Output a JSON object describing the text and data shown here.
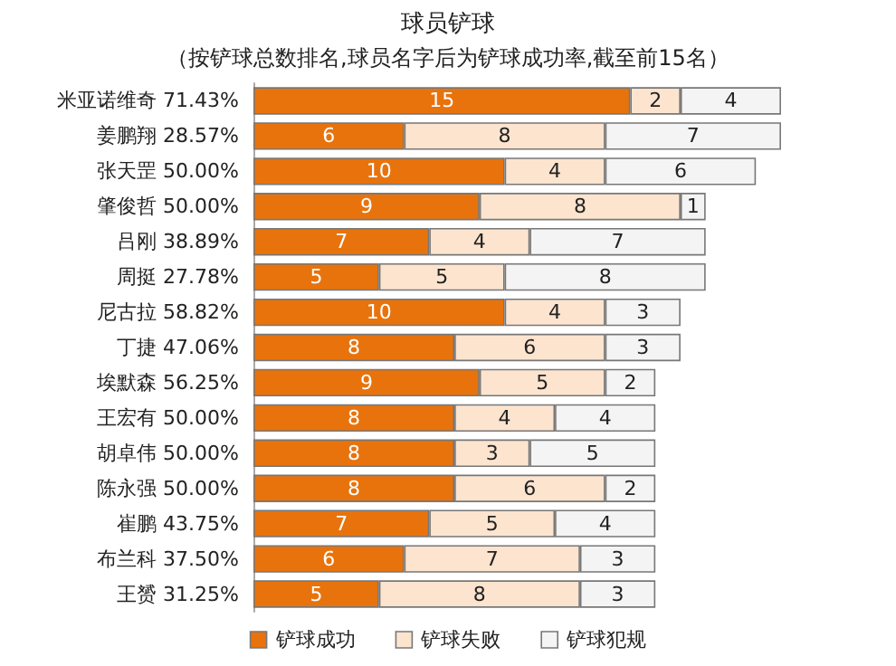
{
  "chart_data": {
    "type": "bar",
    "orientation": "horizontal",
    "stacked": true,
    "data_labels": true,
    "legend": "bottom",
    "title": "球员铲球",
    "subtitle": "（按铲球总数排名,球员名字后为铲球成功率,截至前15名）",
    "categories": [
      "米亚诺维奇 71.43%",
      "姜鹏翔 28.57%",
      "张天罡 50.00%",
      "肇俊哲 50.00%",
      "吕刚 38.89%",
      "周挺 27.78%",
      "尼古拉 58.82%",
      "丁捷 47.06%",
      "埃默森 56.25%",
      "王宏有 50.00%",
      "胡卓伟 50.00%",
      "陈永强 50.00%",
      "崔鹏 43.75%",
      "布兰科 37.50%",
      "王赟 31.25%"
    ],
    "series": [
      {
        "name": "铲球成功",
        "color": "#e8730c",
        "values": [
          15,
          6,
          10,
          9,
          7,
          5,
          10,
          8,
          9,
          8,
          8,
          8,
          7,
          6,
          5
        ]
      },
      {
        "name": "铲球失败",
        "color": "#fce4cf",
        "values": [
          2,
          8,
          4,
          8,
          4,
          5,
          4,
          6,
          5,
          4,
          3,
          6,
          5,
          7,
          8
        ]
      },
      {
        "name": "铲球犯规",
        "color": "#f4f4f4",
        "values": [
          4,
          7,
          6,
          1,
          7,
          8,
          3,
          3,
          2,
          4,
          5,
          2,
          4,
          3,
          3
        ]
      }
    ]
  }
}
